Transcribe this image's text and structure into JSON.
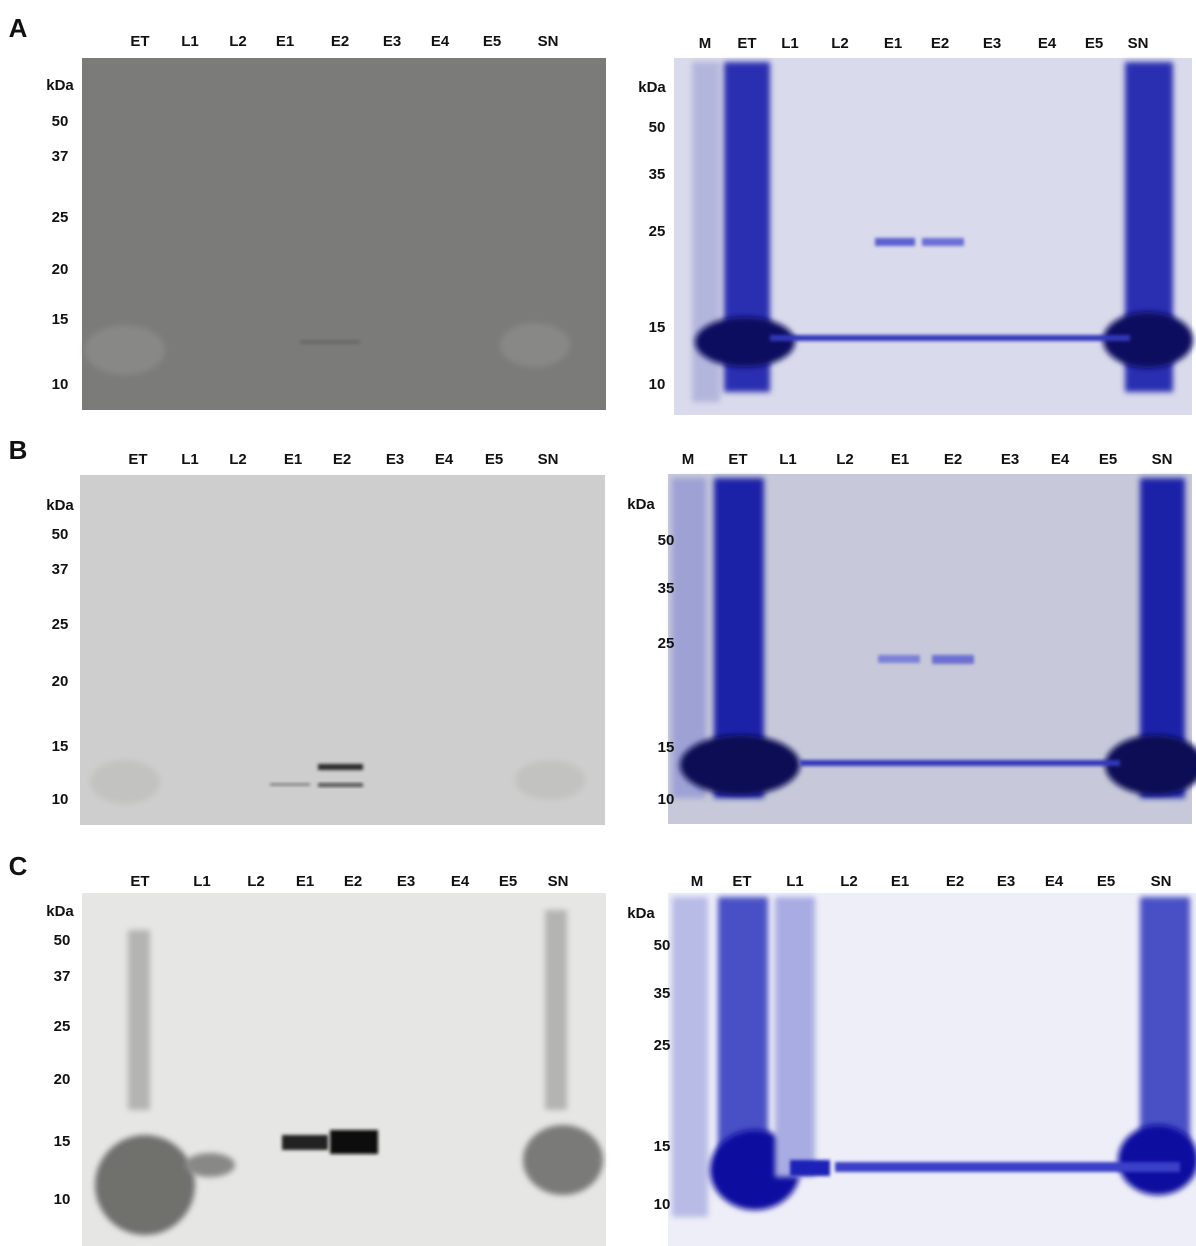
{
  "panels": [
    {
      "label": "A",
      "blot": {
        "lanes": [
          "ET",
          "L1",
          "L2",
          "E1",
          "E2",
          "E3",
          "E4",
          "E5",
          "SN"
        ],
        "unit": "kDa",
        "markers": [
          50,
          37,
          25,
          20,
          15,
          10
        ]
      },
      "gel": {
        "lanes": [
          "M",
          "ET",
          "L1",
          "L2",
          "E1",
          "E2",
          "E3",
          "E4",
          "E5",
          "SN"
        ],
        "unit": "kDa",
        "markers": [
          50,
          35,
          25,
          15,
          10
        ]
      }
    },
    {
      "label": "B",
      "blot": {
        "lanes": [
          "ET",
          "L1",
          "L2",
          "E1",
          "E2",
          "E3",
          "E4",
          "E5",
          "SN"
        ],
        "unit": "kDa",
        "markers": [
          50,
          37,
          25,
          20,
          15,
          10
        ]
      },
      "gel": {
        "lanes": [
          "M",
          "ET",
          "L1",
          "L2",
          "E1",
          "E2",
          "E3",
          "E4",
          "E5",
          "SN"
        ],
        "unit": "kDa",
        "markers": [
          50,
          35,
          25,
          15,
          10
        ]
      }
    },
    {
      "label": "C",
      "blot": {
        "lanes": [
          "ET",
          "L1",
          "L2",
          "E1",
          "E2",
          "E3",
          "E4",
          "E5",
          "SN"
        ],
        "unit": "kDa",
        "markers": [
          50,
          37,
          25,
          20,
          15,
          10
        ]
      },
      "gel": {
        "lanes": [
          "M",
          "ET",
          "L1",
          "L2",
          "E1",
          "E2",
          "E3",
          "E4",
          "E5",
          "SN"
        ],
        "unit": "kDa",
        "markers": [
          50,
          35,
          25,
          15,
          10
        ]
      }
    }
  ]
}
